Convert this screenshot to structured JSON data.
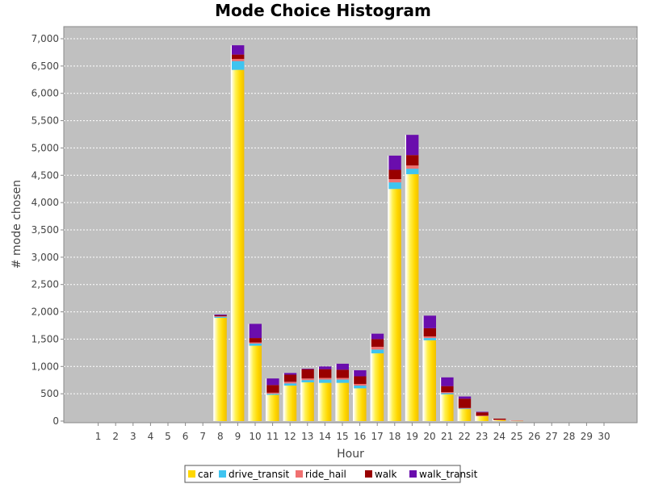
{
  "chart_data": {
    "type": "bar",
    "stacked": true,
    "title": "Mode Choice Histogram",
    "xlabel": "Hour",
    "ylabel": "# mode chosen",
    "categories": [
      "1",
      "2",
      "3",
      "4",
      "5",
      "6",
      "7",
      "8",
      "9",
      "10",
      "11",
      "12",
      "13",
      "14",
      "15",
      "16",
      "17",
      "18",
      "19",
      "20",
      "21",
      "22",
      "23",
      "24",
      "25",
      "26",
      "27",
      "28",
      "29",
      "30"
    ],
    "ylim": [
      0,
      7200
    ],
    "yticks": [
      0,
      500,
      1000,
      1500,
      2000,
      2500,
      3000,
      3500,
      4000,
      4500,
      5000,
      5500,
      6000,
      6500,
      7000
    ],
    "ytick_labels": [
      "0",
      "500",
      "1,000",
      "1,500",
      "2,000",
      "2,500",
      "3,000",
      "3,500",
      "4,000",
      "4,500",
      "5,000",
      "5,500",
      "6,000",
      "6,500",
      "7,000"
    ],
    "grid": true,
    "legend_position": "bottom",
    "series": [
      {
        "name": "car",
        "color": "#FFD700",
        "values": [
          0,
          0,
          0,
          0,
          0,
          0,
          0,
          1890,
          6430,
          1380,
          480,
          650,
          710,
          700,
          700,
          600,
          1240,
          4250,
          4520,
          1480,
          490,
          220,
          90,
          20,
          5,
          0,
          0,
          0,
          0,
          0
        ]
      },
      {
        "name": "drive_transit",
        "color": "#3FC4F0",
        "values": [
          0,
          0,
          0,
          0,
          0,
          0,
          0,
          20,
          160,
          40,
          20,
          40,
          40,
          60,
          60,
          50,
          70,
          120,
          100,
          40,
          20,
          10,
          0,
          0,
          0,
          0,
          0,
          0,
          0,
          0
        ]
      },
      {
        "name": "ride_hail",
        "color": "#F07070",
        "values": [
          0,
          0,
          0,
          0,
          0,
          0,
          0,
          10,
          40,
          20,
          20,
          30,
          30,
          30,
          30,
          30,
          50,
          60,
          60,
          30,
          20,
          10,
          10,
          5,
          5,
          0,
          0,
          0,
          0,
          0
        ]
      },
      {
        "name": "walk",
        "color": "#990000",
        "values": [
          0,
          0,
          0,
          0,
          0,
          0,
          0,
          15,
          80,
          80,
          140,
          130,
          170,
          160,
          150,
          140,
          140,
          170,
          190,
          150,
          110,
          170,
          60,
          20,
          0,
          0,
          0,
          0,
          0,
          0
        ]
      },
      {
        "name": "walk_transit",
        "color": "#6A0DAD",
        "values": [
          0,
          0,
          0,
          0,
          0,
          0,
          0,
          15,
          170,
          260,
          120,
          30,
          10,
          50,
          110,
          110,
          100,
          260,
          370,
          230,
          160,
          40,
          10,
          0,
          0,
          0,
          0,
          0,
          0,
          0
        ]
      }
    ]
  }
}
